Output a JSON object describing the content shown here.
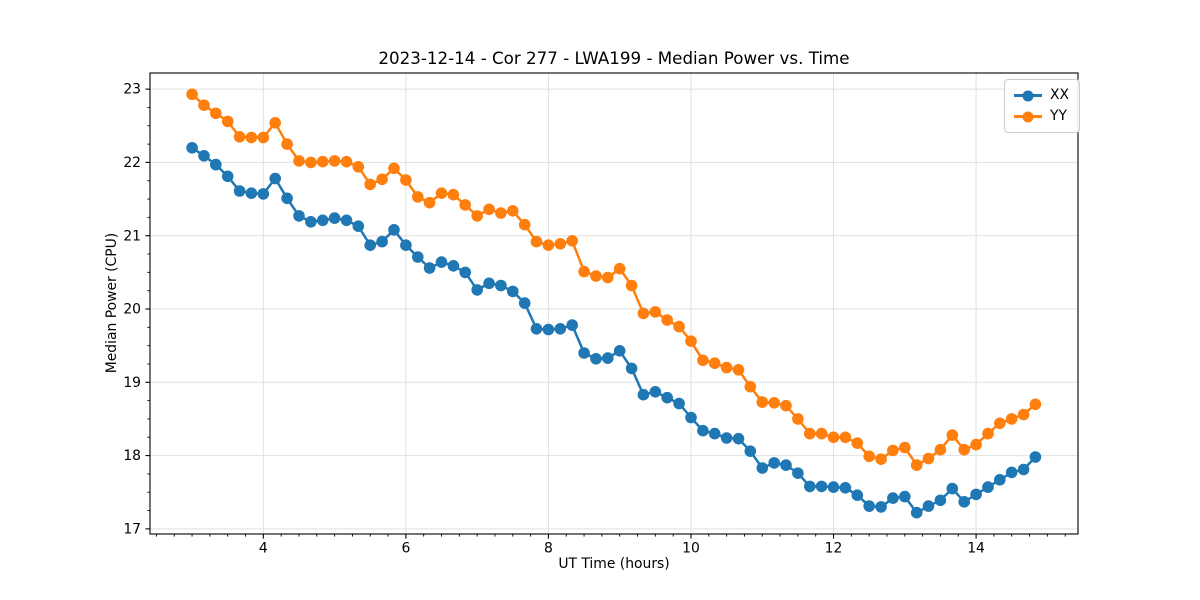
{
  "chart_data": {
    "type": "line",
    "title": "2023-12-14 - Cor 277 - LWA199 - Median Power vs. Time",
    "xlabel": "UT Time (hours)",
    "ylabel": "Median Power (CPU)",
    "xlim": [
      2.41,
      15.43
    ],
    "ylim": [
      16.93,
      23.22
    ],
    "x_ticks": [
      4,
      6,
      8,
      10,
      12,
      14
    ],
    "y_ticks": [
      17,
      18,
      19,
      20,
      21,
      22,
      23
    ],
    "x_minor_step": 0.25,
    "y_minor_step": 0.25,
    "grid": true,
    "legend_position": "upper right",
    "grid_color": "#e1e1e1",
    "x": [
      3.0,
      3.167,
      3.333,
      3.5,
      3.667,
      3.833,
      4.0,
      4.167,
      4.333,
      4.5,
      4.667,
      4.833,
      5.0,
      5.167,
      5.333,
      5.5,
      5.667,
      5.833,
      6.0,
      6.167,
      6.333,
      6.5,
      6.667,
      6.833,
      7.0,
      7.167,
      7.333,
      7.5,
      7.667,
      7.833,
      8.0,
      8.167,
      8.333,
      8.5,
      8.667,
      8.833,
      9.0,
      9.167,
      9.333,
      9.5,
      9.667,
      9.833,
      10.0,
      10.167,
      10.333,
      10.5,
      10.667,
      10.833,
      11.0,
      11.167,
      11.333,
      11.5,
      11.667,
      11.833,
      12.0,
      12.167,
      12.333,
      12.5,
      12.667,
      12.833,
      13.0,
      13.167,
      13.333,
      13.5,
      13.667,
      13.833,
      14.0,
      14.167,
      14.333,
      14.5,
      14.667,
      14.833
    ],
    "series": [
      {
        "name": "XX",
        "color": "#1f77b4",
        "values": [
          22.2,
          22.09,
          21.97,
          21.81,
          21.61,
          21.58,
          21.57,
          21.78,
          21.51,
          21.27,
          21.19,
          21.21,
          21.24,
          21.21,
          21.13,
          20.87,
          20.92,
          21.08,
          20.87,
          20.71,
          20.56,
          20.64,
          20.59,
          20.5,
          20.26,
          20.35,
          20.32,
          20.24,
          20.08,
          19.73,
          19.72,
          19.73,
          19.78,
          19.4,
          19.32,
          19.33,
          19.43,
          19.19,
          18.83,
          18.87,
          18.79,
          18.71,
          18.52,
          18.34,
          18.3,
          18.24,
          18.23,
          18.06,
          17.83,
          17.9,
          17.87,
          17.76,
          17.58,
          17.58,
          17.57,
          17.56,
          17.46,
          17.31,
          17.3,
          17.42,
          17.44,
          17.22,
          17.31,
          17.39,
          17.55,
          17.37,
          17.47,
          17.57,
          17.67,
          17.77,
          17.81,
          17.98
        ]
      },
      {
        "name": "YY",
        "color": "#ff7f0e",
        "values": [
          22.93,
          22.78,
          22.67,
          22.56,
          22.35,
          22.34,
          22.34,
          22.54,
          22.25,
          22.02,
          22.0,
          22.01,
          22.02,
          22.01,
          21.94,
          21.7,
          21.77,
          21.92,
          21.76,
          21.53,
          21.45,
          21.58,
          21.56,
          21.42,
          21.27,
          21.36,
          21.31,
          21.34,
          21.15,
          20.92,
          20.87,
          20.89,
          20.93,
          20.51,
          20.45,
          20.43,
          20.55,
          20.32,
          19.94,
          19.96,
          19.85,
          19.76,
          19.56,
          19.3,
          19.26,
          19.2,
          19.17,
          18.94,
          18.73,
          18.72,
          18.68,
          18.5,
          18.3,
          18.3,
          18.25,
          18.25,
          18.17,
          17.99,
          17.95,
          18.07,
          18.11,
          17.87,
          17.96,
          18.08,
          18.28,
          18.08,
          18.15,
          18.3,
          18.44,
          18.5,
          18.56,
          18.7
        ]
      }
    ]
  }
}
